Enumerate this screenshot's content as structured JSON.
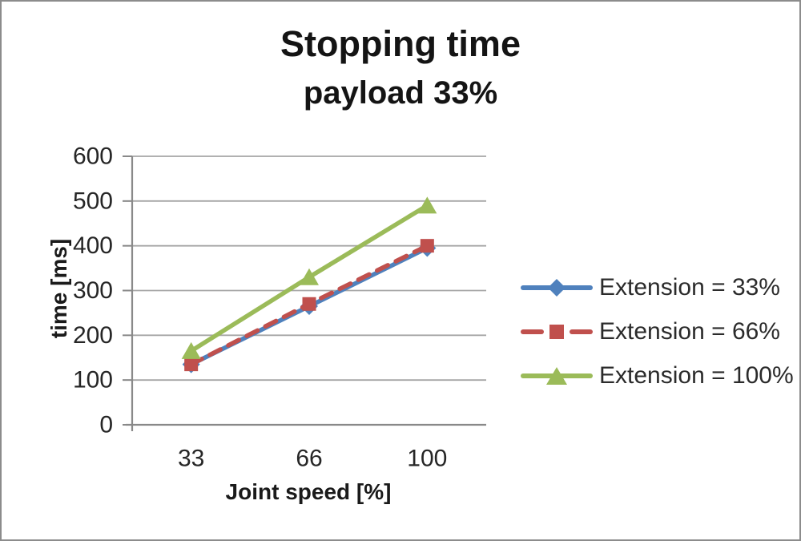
{
  "title": {
    "line1": "Stopping time",
    "line2": "payload 33%"
  },
  "chart_data": {
    "type": "line",
    "x_categories": [
      "33",
      "66",
      "100"
    ],
    "xlabel": "Joint speed [%]",
    "ylabel": "time [ms]",
    "ylim": [
      0,
      600
    ],
    "yticks": [
      0,
      100,
      200,
      300,
      400,
      500,
      600
    ],
    "grid": "horizontal-major",
    "legend_position": "right",
    "series": [
      {
        "name": "Extension = 33%",
        "color": "#4F81BD",
        "marker": "diamond",
        "line_style": "solid",
        "values": [
          135,
          265,
          395
        ]
      },
      {
        "name": "Extension = 66%",
        "color": "#C0504D",
        "marker": "square",
        "line_style": "dashed",
        "values": [
          135,
          270,
          400
        ]
      },
      {
        "name": "Extension = 100%",
        "color": "#9BBB59",
        "marker": "triangle",
        "line_style": "solid",
        "values": [
          165,
          330,
          490
        ]
      }
    ]
  },
  "colors": {
    "gridline": "#A6A6A6",
    "axis": "#898989",
    "tick_text": "#262626",
    "title_text": "#141414",
    "legend_text": "#2b2b2b"
  }
}
